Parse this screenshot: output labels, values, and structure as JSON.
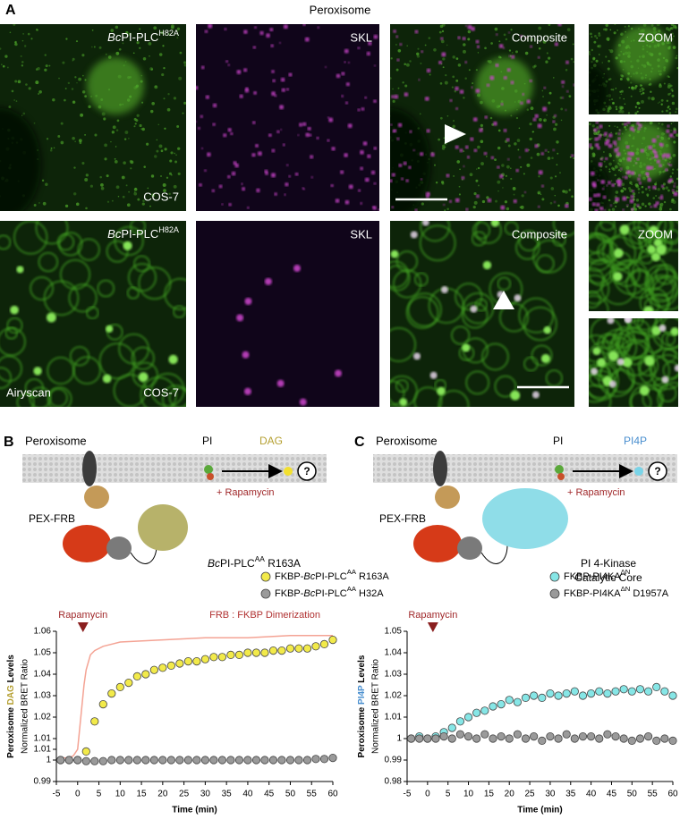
{
  "panel_a": {
    "label": "A",
    "title": "Peroxisome",
    "rows": [
      {
        "probe": [
          {
            "text": "Bc",
            "style": "italic"
          },
          {
            "text": "PI-PLC"
          },
          {
            "text": "H82A",
            "style": "sup"
          }
        ],
        "cell_line": "COS-7",
        "marker": "SKL",
        "merge": "Composite",
        "zoom": "ZOOM"
      },
      {
        "probe": [
          {
            "text": "Bc",
            "style": "italic"
          },
          {
            "text": "PI-PLC"
          },
          {
            "text": "H82A",
            "style": "sup"
          }
        ],
        "cell_line": "COS-7",
        "method": "Airyscan",
        "marker": "SKL",
        "merge": "Composite",
        "zoom": "ZOOM"
      }
    ]
  },
  "schemes": [
    {
      "label": "B",
      "title": "Peroxisome",
      "substrate": "PI",
      "product": "DAG",
      "product_color": "#b5a032",
      "anchor": "PEX-FRB",
      "trigger": "+ Rapamycin",
      "unknown": "?",
      "enzyme": [
        [
          {
            "text": "Bc",
            "style": "italic"
          },
          {
            "text": "PI-PLC"
          },
          {
            "text": "AA",
            "style": "sup"
          },
          {
            "text": " R163A"
          }
        ]
      ]
    },
    {
      "label": "C",
      "title": "Peroxisome",
      "substrate": "PI",
      "product": "PI4P",
      "product_color": "#4a8fcf",
      "anchor": "PEX-FRB",
      "trigger": "+ Rapamycin",
      "unknown": "?",
      "enzyme": [
        [
          {
            "text": "PI 4-Kinase"
          }
        ],
        [
          {
            "text": "Catalytic Core"
          }
        ]
      ]
    }
  ],
  "chart_data": [
    {
      "type": "line",
      "xlim": [
        -5,
        60
      ],
      "xticks": [
        -5,
        0,
        5,
        10,
        15,
        20,
        25,
        30,
        35,
        40,
        45,
        50,
        55,
        60
      ],
      "ylim": [
        0.99,
        1.06
      ],
      "yticks": [
        0.99,
        1,
        {
          "value": 1.005,
          "label": "1.01"
        },
        1.01,
        1.02,
        1.03,
        1.04,
        1.05,
        1.06
      ],
      "x_label": "Time (min)",
      "y_label": [
        {
          "text": "Peroxisome "
        },
        {
          "text": "DAG",
          "color": "#b5a032"
        },
        {
          "text": " Levels"
        }
      ],
      "y_sublabel": "Normalized BRET Ratio",
      "annotations": [
        {
          "text": "Rapamycin",
          "x": 0,
          "color": "#a0282a"
        }
      ],
      "x": [
        -4,
        -2,
        0,
        2,
        4,
        6,
        8,
        10,
        12,
        14,
        16,
        18,
        20,
        22,
        24,
        26,
        28,
        30,
        32,
        34,
        36,
        38,
        40,
        42,
        44,
        46,
        48,
        50,
        52,
        54,
        56,
        58,
        60
      ],
      "series": [
        {
          "name": [
            {
              "text": "FRB : FKBP Dimerization"
            }
          ],
          "color": "#f4a394",
          "marker": "none",
          "x": [
            -4,
            -2,
            -1,
            0,
            0.5,
            1,
            1.5,
            2,
            3,
            4,
            6,
            10,
            20,
            30,
            40,
            50,
            60
          ],
          "values": [
            1.001,
            1.001,
            1.002,
            1.005,
            1.015,
            1.025,
            1.035,
            1.042,
            1.049,
            1.051,
            1.053,
            1.055,
            1.056,
            1.057,
            1.057,
            1.058,
            1.058
          ]
        },
        {
          "name": [
            {
              "text": "FKBP-"
            },
            {
              "text": "Bc",
              "style": "italic"
            },
            {
              "text": "PI-PLC"
            },
            {
              "text": "AA",
              "style": "sup"
            },
            {
              "text": " R163A"
            }
          ],
          "color": "#f2ea4a",
          "marker": "circle",
          "values": [
            1,
            1,
            1,
            1.004,
            1.018,
            1.026,
            1.031,
            1.034,
            1.036,
            1.039,
            1.04,
            1.042,
            1.043,
            1.044,
            1.045,
            1.046,
            1.046,
            1.047,
            1.048,
            1.048,
            1.049,
            1.049,
            1.05,
            1.05,
            1.05,
            1.051,
            1.051,
            1.052,
            1.052,
            1.052,
            1.053,
            1.054,
            1.056
          ]
        },
        {
          "name": [
            {
              "text": "FKBP-"
            },
            {
              "text": "Bc",
              "style": "italic"
            },
            {
              "text": "PI-PLC"
            },
            {
              "text": "AA",
              "style": "sup"
            },
            {
              "text": " H32A"
            }
          ],
          "color": "#9a9a9a",
          "marker": "circle",
          "values": [
            1,
            1,
            1,
            0.9995,
            0.9995,
            0.9995,
            1,
            1,
            1,
            1,
            1,
            1,
            1,
            1,
            1,
            1,
            1,
            1,
            1,
            1,
            1,
            1,
            1,
            1,
            1,
            1,
            1,
            1,
            1,
            1,
            1.0005,
            1.0005,
            1.001
          ]
        }
      ]
    },
    {
      "type": "line",
      "xlim": [
        -5,
        60
      ],
      "xticks": [
        -5,
        0,
        5,
        10,
        15,
        20,
        25,
        30,
        35,
        40,
        45,
        50,
        55,
        60
      ],
      "ylim": [
        0.98,
        1.05
      ],
      "yticks": [
        0.98,
        0.99,
        1,
        1.01,
        1.02,
        1.03,
        1.04,
        1.05
      ],
      "x_label": "Time (min)",
      "y_label": [
        {
          "text": "Peroxisome "
        },
        {
          "text": "PI4P",
          "color": "#4a8fcf"
        },
        {
          "text": " Levels"
        }
      ],
      "y_sublabel": "Normalized BRET Ratio",
      "annotations": [
        {
          "text": "Rapamycin",
          "x": 0,
          "color": "#a0282a"
        }
      ],
      "x": [
        -4,
        -2,
        0,
        2,
        4,
        6,
        8,
        10,
        12,
        14,
        16,
        18,
        20,
        22,
        24,
        26,
        28,
        30,
        32,
        34,
        36,
        38,
        40,
        42,
        44,
        46,
        48,
        50,
        52,
        54,
        56,
        58,
        60
      ],
      "series": [
        {
          "name": [
            {
              "text": "FKBP-PI4KA"
            },
            {
              "text": "ΔN",
              "style": "sup"
            }
          ],
          "color": "#86e6e6",
          "marker": "circle",
          "values": [
            1,
            1.001,
            1,
            1.001,
            1.003,
            1.005,
            1.008,
            1.01,
            1.012,
            1.013,
            1.015,
            1.016,
            1.018,
            1.017,
            1.019,
            1.02,
            1.019,
            1.021,
            1.02,
            1.021,
            1.022,
            1.02,
            1.021,
            1.022,
            1.021,
            1.022,
            1.023,
            1.022,
            1.023,
            1.022,
            1.024,
            1.022,
            1.02
          ]
        },
        {
          "name": [
            {
              "text": "FKBP-PI4KA"
            },
            {
              "text": "ΔN",
              "style": "sup"
            },
            {
              "text": " D1957A"
            }
          ],
          "color": "#9a9a9a",
          "marker": "circle",
          "values": [
            1,
            1,
            1,
            1,
            1.001,
            1,
            1.002,
            1.001,
            1,
            1.002,
            1,
            1.001,
            1,
            1.002,
            1,
            1.001,
            0.999,
            1.001,
            1,
            1.002,
            1,
            1.001,
            1.001,
            1,
            1.002,
            1.001,
            1,
            0.999,
            1,
            1.001,
            0.999,
            1,
            0.999
          ]
        }
      ]
    }
  ]
}
